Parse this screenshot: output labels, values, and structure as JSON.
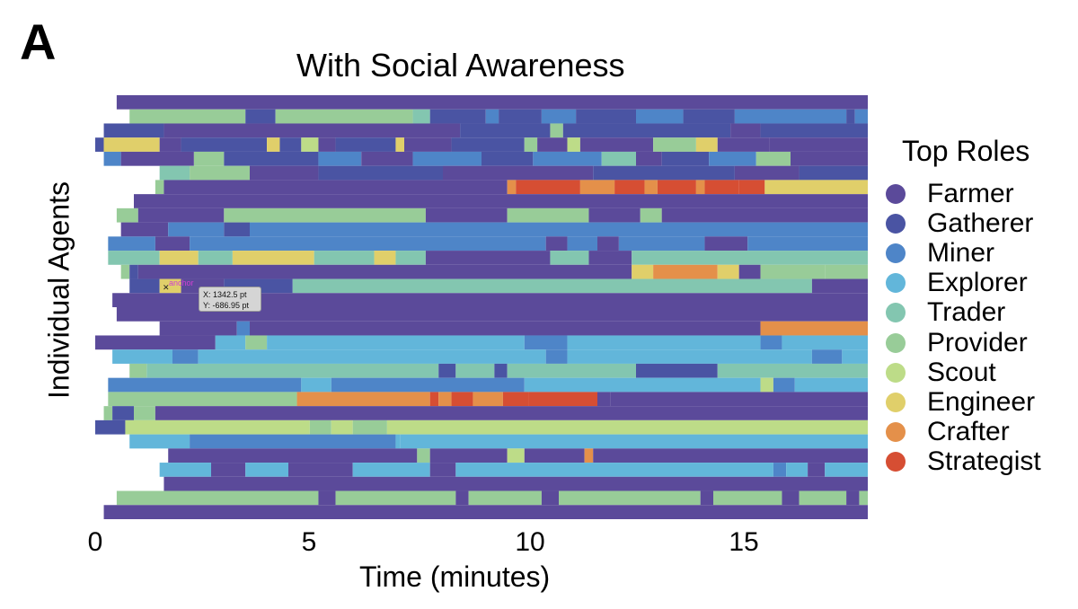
{
  "panel_letter": "A",
  "chart_data": {
    "type": "timeline",
    "title": "With Social Awareness",
    "xlabel": "Time (minutes)",
    "ylabel": "Individual Agents",
    "xlim": [
      0,
      18
    ],
    "xticks": [
      "0",
      "5",
      "10",
      "15"
    ],
    "xtick_values": [
      0,
      5,
      10,
      15
    ],
    "legend_title": "Top Roles",
    "roles": [
      {
        "name": "Farmer",
        "color": "#5b4a9a"
      },
      {
        "name": "Gatherer",
        "color": "#4a54a3"
      },
      {
        "name": "Miner",
        "color": "#4e85c8"
      },
      {
        "name": "Explorer",
        "color": "#62b6da"
      },
      {
        "name": "Trader",
        "color": "#83c6b0"
      },
      {
        "name": "Provider",
        "color": "#98cc98"
      },
      {
        "name": "Scout",
        "color": "#bddc88"
      },
      {
        "name": "Engineer",
        "color": "#e0cf6a"
      },
      {
        "name": "Crafter",
        "color": "#e4904a"
      },
      {
        "name": "Strategist",
        "color": "#d64e33"
      }
    ],
    "agents": [
      {
        "start": 0.5,
        "segs": [
          [
            18,
            "Farmer"
          ]
        ]
      },
      {
        "start": 0.8,
        "segs": [
          [
            3.5,
            "Provider"
          ],
          [
            4.2,
            "Gatherer"
          ],
          [
            7.4,
            "Provider"
          ],
          [
            7.8,
            "Trader"
          ],
          [
            9.1,
            "Gatherer"
          ],
          [
            9.4,
            "Miner"
          ],
          [
            10.4,
            "Gatherer"
          ],
          [
            11.2,
            "Miner"
          ],
          [
            12.6,
            "Gatherer"
          ],
          [
            13.7,
            "Miner"
          ],
          [
            14.9,
            "Gatherer"
          ],
          [
            17.5,
            "Miner"
          ],
          [
            17.7,
            "Gatherer"
          ],
          [
            18,
            "Miner"
          ]
        ]
      },
      {
        "start": 0.2,
        "segs": [
          [
            1.6,
            "Gatherer"
          ],
          [
            8.5,
            "Farmer"
          ],
          [
            10.6,
            "Gatherer"
          ],
          [
            10.9,
            "Provider"
          ],
          [
            14.8,
            "Gatherer"
          ],
          [
            15.5,
            "Farmer"
          ],
          [
            18,
            "Gatherer"
          ]
        ]
      },
      {
        "start": 0.0,
        "segs": [
          [
            0.2,
            "Gatherer"
          ],
          [
            1.5,
            "Engineer"
          ],
          [
            2.0,
            "Farmer"
          ],
          [
            4.0,
            "Gatherer"
          ],
          [
            4.3,
            "Engineer"
          ],
          [
            4.8,
            "Gatherer"
          ],
          [
            5.2,
            "Scout"
          ],
          [
            5.6,
            "Farmer"
          ],
          [
            7.0,
            "Gatherer"
          ],
          [
            7.2,
            "Engineer"
          ],
          [
            8.3,
            "Farmer"
          ],
          [
            10.0,
            "Gatherer"
          ],
          [
            10.3,
            "Provider"
          ],
          [
            11.0,
            "Farmer"
          ],
          [
            11.3,
            "Scout"
          ],
          [
            13.0,
            "Farmer"
          ],
          [
            14.0,
            "Provider"
          ],
          [
            14.5,
            "Engineer"
          ],
          [
            15.7,
            "Farmer"
          ],
          [
            18,
            "Farmer"
          ]
        ]
      },
      {
        "start": 0.2,
        "segs": [
          [
            0.6,
            "Miner"
          ],
          [
            2.3,
            "Farmer"
          ],
          [
            3.0,
            "Provider"
          ],
          [
            5.2,
            "Gatherer"
          ],
          [
            6.2,
            "Miner"
          ],
          [
            7.4,
            "Farmer"
          ],
          [
            9.0,
            "Miner"
          ],
          [
            10.2,
            "Gatherer"
          ],
          [
            11.8,
            "Miner"
          ],
          [
            12.6,
            "Trader"
          ],
          [
            13.2,
            "Farmer"
          ],
          [
            14.3,
            "Gatherer"
          ],
          [
            15.4,
            "Miner"
          ],
          [
            16.2,
            "Provider"
          ],
          [
            18,
            "Farmer"
          ]
        ]
      },
      {
        "start": 1.5,
        "segs": [
          [
            2.2,
            "Trader"
          ],
          [
            3.6,
            "Provider"
          ],
          [
            5.2,
            "Farmer"
          ],
          [
            8.1,
            "Gatherer"
          ],
          [
            11.6,
            "Farmer"
          ],
          [
            14.9,
            "Gatherer"
          ],
          [
            16.4,
            "Farmer"
          ],
          [
            18,
            "Gatherer"
          ]
        ]
      },
      {
        "start": 1.4,
        "segs": [
          [
            1.6,
            "Provider"
          ],
          [
            9.6,
            "Farmer"
          ],
          [
            9.8,
            "Crafter"
          ],
          [
            11.3,
            "Strategist"
          ],
          [
            12.1,
            "Crafter"
          ],
          [
            12.8,
            "Strategist"
          ],
          [
            13.1,
            "Crafter"
          ],
          [
            14.0,
            "Strategist"
          ],
          [
            14.2,
            "Crafter"
          ],
          [
            15.0,
            "Strategist"
          ],
          [
            15.6,
            "Strategist"
          ],
          [
            18,
            "Engineer"
          ]
        ]
      },
      {
        "start": 0.9,
        "segs": [
          [
            18,
            "Farmer"
          ]
        ]
      },
      {
        "start": 0.5,
        "segs": [
          [
            1.0,
            "Provider"
          ],
          [
            3.0,
            "Farmer"
          ],
          [
            7.7,
            "Provider"
          ],
          [
            9.6,
            "Farmer"
          ],
          [
            11.5,
            "Provider"
          ],
          [
            12.7,
            "Farmer"
          ],
          [
            13.2,
            "Provider"
          ],
          [
            18,
            "Farmer"
          ]
        ]
      },
      {
        "start": 0.6,
        "segs": [
          [
            1.7,
            "Farmer"
          ],
          [
            3.0,
            "Miner"
          ],
          [
            3.6,
            "Gatherer"
          ],
          [
            18,
            "Miner"
          ]
        ]
      },
      {
        "start": 0.3,
        "segs": [
          [
            1.4,
            "Miner"
          ],
          [
            2.2,
            "Farmer"
          ],
          [
            10.5,
            "Miner"
          ],
          [
            11.0,
            "Farmer"
          ],
          [
            11.7,
            "Miner"
          ],
          [
            12.2,
            "Farmer"
          ],
          [
            14.2,
            "Miner"
          ],
          [
            15.2,
            "Farmer"
          ],
          [
            18,
            "Miner"
          ]
        ]
      },
      {
        "start": 0.3,
        "segs": [
          [
            1.5,
            "Trader"
          ],
          [
            2.4,
            "Engineer"
          ],
          [
            3.2,
            "Trader"
          ],
          [
            5.1,
            "Engineer"
          ],
          [
            6.5,
            "Trader"
          ],
          [
            7.0,
            "Engineer"
          ],
          [
            7.7,
            "Trader"
          ],
          [
            10.6,
            "Farmer"
          ],
          [
            11.5,
            "Trader"
          ],
          [
            12.5,
            "Farmer"
          ],
          [
            18,
            "Trader"
          ]
        ]
      },
      {
        "start": 0.6,
        "segs": [
          [
            0.8,
            "Provider"
          ],
          [
            1.0,
            "Gatherer"
          ],
          [
            12.5,
            "Farmer"
          ],
          [
            13.0,
            "Engineer"
          ],
          [
            14.5,
            "Crafter"
          ],
          [
            15.0,
            "Engineer"
          ],
          [
            15.5,
            "Farmer"
          ],
          [
            17.0,
            "Provider"
          ],
          [
            18,
            "Provider"
          ]
        ]
      },
      {
        "start": 0.8,
        "segs": [
          [
            1.5,
            "Gatherer"
          ],
          [
            2.0,
            "Engineer"
          ],
          [
            3.0,
            "Farmer"
          ],
          [
            4.6,
            "Gatherer"
          ],
          [
            16.7,
            "Trader"
          ],
          [
            18,
            "Farmer"
          ]
        ]
      },
      {
        "start": 0.4,
        "segs": [
          [
            18,
            "Farmer"
          ]
        ]
      },
      {
        "start": 0.5,
        "segs": [
          [
            18,
            "Farmer"
          ]
        ]
      },
      {
        "start": 1.5,
        "segs": [
          [
            3.3,
            "Farmer"
          ],
          [
            3.6,
            "Miner"
          ],
          [
            15.5,
            "Farmer"
          ],
          [
            18,
            "Crafter"
          ]
        ]
      },
      {
        "start": 0.0,
        "segs": [
          [
            2.8,
            "Farmer"
          ],
          [
            3.5,
            "Explorer"
          ],
          [
            4.0,
            "Provider"
          ],
          [
            10.0,
            "Explorer"
          ],
          [
            11.0,
            "Miner"
          ],
          [
            15.5,
            "Explorer"
          ],
          [
            16.0,
            "Miner"
          ],
          [
            18,
            "Explorer"
          ]
        ]
      },
      {
        "start": 0.4,
        "segs": [
          [
            1.8,
            "Explorer"
          ],
          [
            2.4,
            "Miner"
          ],
          [
            10.5,
            "Explorer"
          ],
          [
            11.0,
            "Miner"
          ],
          [
            16.7,
            "Explorer"
          ],
          [
            17.4,
            "Miner"
          ],
          [
            18,
            "Explorer"
          ]
        ]
      },
      {
        "start": 0.8,
        "segs": [
          [
            1.2,
            "Provider"
          ],
          [
            8.0,
            "Trader"
          ],
          [
            8.4,
            "Gatherer"
          ],
          [
            9.3,
            "Trader"
          ],
          [
            9.6,
            "Gatherer"
          ],
          [
            12.6,
            "Trader"
          ],
          [
            14.5,
            "Gatherer"
          ],
          [
            18,
            "Trader"
          ]
        ]
      },
      {
        "start": 0.3,
        "segs": [
          [
            4.8,
            "Miner"
          ],
          [
            5.5,
            "Explorer"
          ],
          [
            10.0,
            "Miner"
          ],
          [
            15.5,
            "Explorer"
          ],
          [
            15.8,
            "Scout"
          ],
          [
            16.3,
            "Miner"
          ],
          [
            18,
            "Explorer"
          ]
        ]
      },
      {
        "start": 0.3,
        "segs": [
          [
            4.7,
            "Provider"
          ],
          [
            7.8,
            "Crafter"
          ],
          [
            8.0,
            "Strategist"
          ],
          [
            8.3,
            "Crafter"
          ],
          [
            8.8,
            "Strategist"
          ],
          [
            9.5,
            "Crafter"
          ],
          [
            10.1,
            "Strategist"
          ],
          [
            11.7,
            "Strategist"
          ],
          [
            12.0,
            "Farmer"
          ],
          [
            18,
            "Farmer"
          ]
        ]
      },
      {
        "start": 0.2,
        "segs": [
          [
            0.4,
            "Provider"
          ],
          [
            0.9,
            "Gatherer"
          ],
          [
            1.4,
            "Provider"
          ],
          [
            18,
            "Farmer"
          ]
        ]
      },
      {
        "start": 0.0,
        "segs": [
          [
            0.7,
            "Gatherer"
          ],
          [
            5.0,
            "Scout"
          ],
          [
            5.5,
            "Provider"
          ],
          [
            6.0,
            "Scout"
          ],
          [
            6.8,
            "Provider"
          ],
          [
            18,
            "Scout"
          ]
        ]
      },
      {
        "start": 0.8,
        "segs": [
          [
            2.2,
            "Explorer"
          ],
          [
            7.0,
            "Miner"
          ],
          [
            7.1,
            "Explorer"
          ],
          [
            18,
            "Explorer"
          ]
        ]
      },
      {
        "start": 1.7,
        "segs": [
          [
            7.5,
            "Farmer"
          ],
          [
            7.8,
            "Provider"
          ],
          [
            9.6,
            "Farmer"
          ],
          [
            10.0,
            "Scout"
          ],
          [
            11.4,
            "Farmer"
          ],
          [
            11.6,
            "Crafter"
          ],
          [
            16.2,
            "Farmer"
          ],
          [
            18,
            "Farmer"
          ]
        ]
      },
      {
        "start": 1.5,
        "segs": [
          [
            2.7,
            "Explorer"
          ],
          [
            3.5,
            "Farmer"
          ],
          [
            4.5,
            "Explorer"
          ],
          [
            6.0,
            "Farmer"
          ],
          [
            7.8,
            "Explorer"
          ],
          [
            8.4,
            "Farmer"
          ],
          [
            15.8,
            "Explorer"
          ],
          [
            16.1,
            "Miner"
          ],
          [
            16.6,
            "Explorer"
          ],
          [
            17.0,
            "Farmer"
          ],
          [
            18,
            "Explorer"
          ]
        ]
      },
      {
        "start": 1.6,
        "segs": [
          [
            18,
            "Farmer"
          ]
        ]
      },
      {
        "start": 0.5,
        "segs": [
          [
            5.2,
            "Provider"
          ],
          [
            5.6,
            "Farmer"
          ],
          [
            8.4,
            "Provider"
          ],
          [
            8.7,
            "Farmer"
          ],
          [
            10.4,
            "Provider"
          ],
          [
            10.8,
            "Farmer"
          ],
          [
            14.1,
            "Provider"
          ],
          [
            14.4,
            "Farmer"
          ],
          [
            16.0,
            "Provider"
          ],
          [
            16.4,
            "Farmer"
          ],
          [
            17.5,
            "Provider"
          ],
          [
            17.8,
            "Farmer"
          ],
          [
            18,
            "Provider"
          ]
        ]
      },
      {
        "start": 0.2,
        "segs": [
          [
            18,
            "Farmer"
          ]
        ]
      }
    ]
  },
  "overlay": {
    "cursor_mark": "✕",
    "anchor_label": "anchor",
    "x_readout": "X: 1342.5 pt",
    "y_readout": "Y: -686.95 pt"
  }
}
